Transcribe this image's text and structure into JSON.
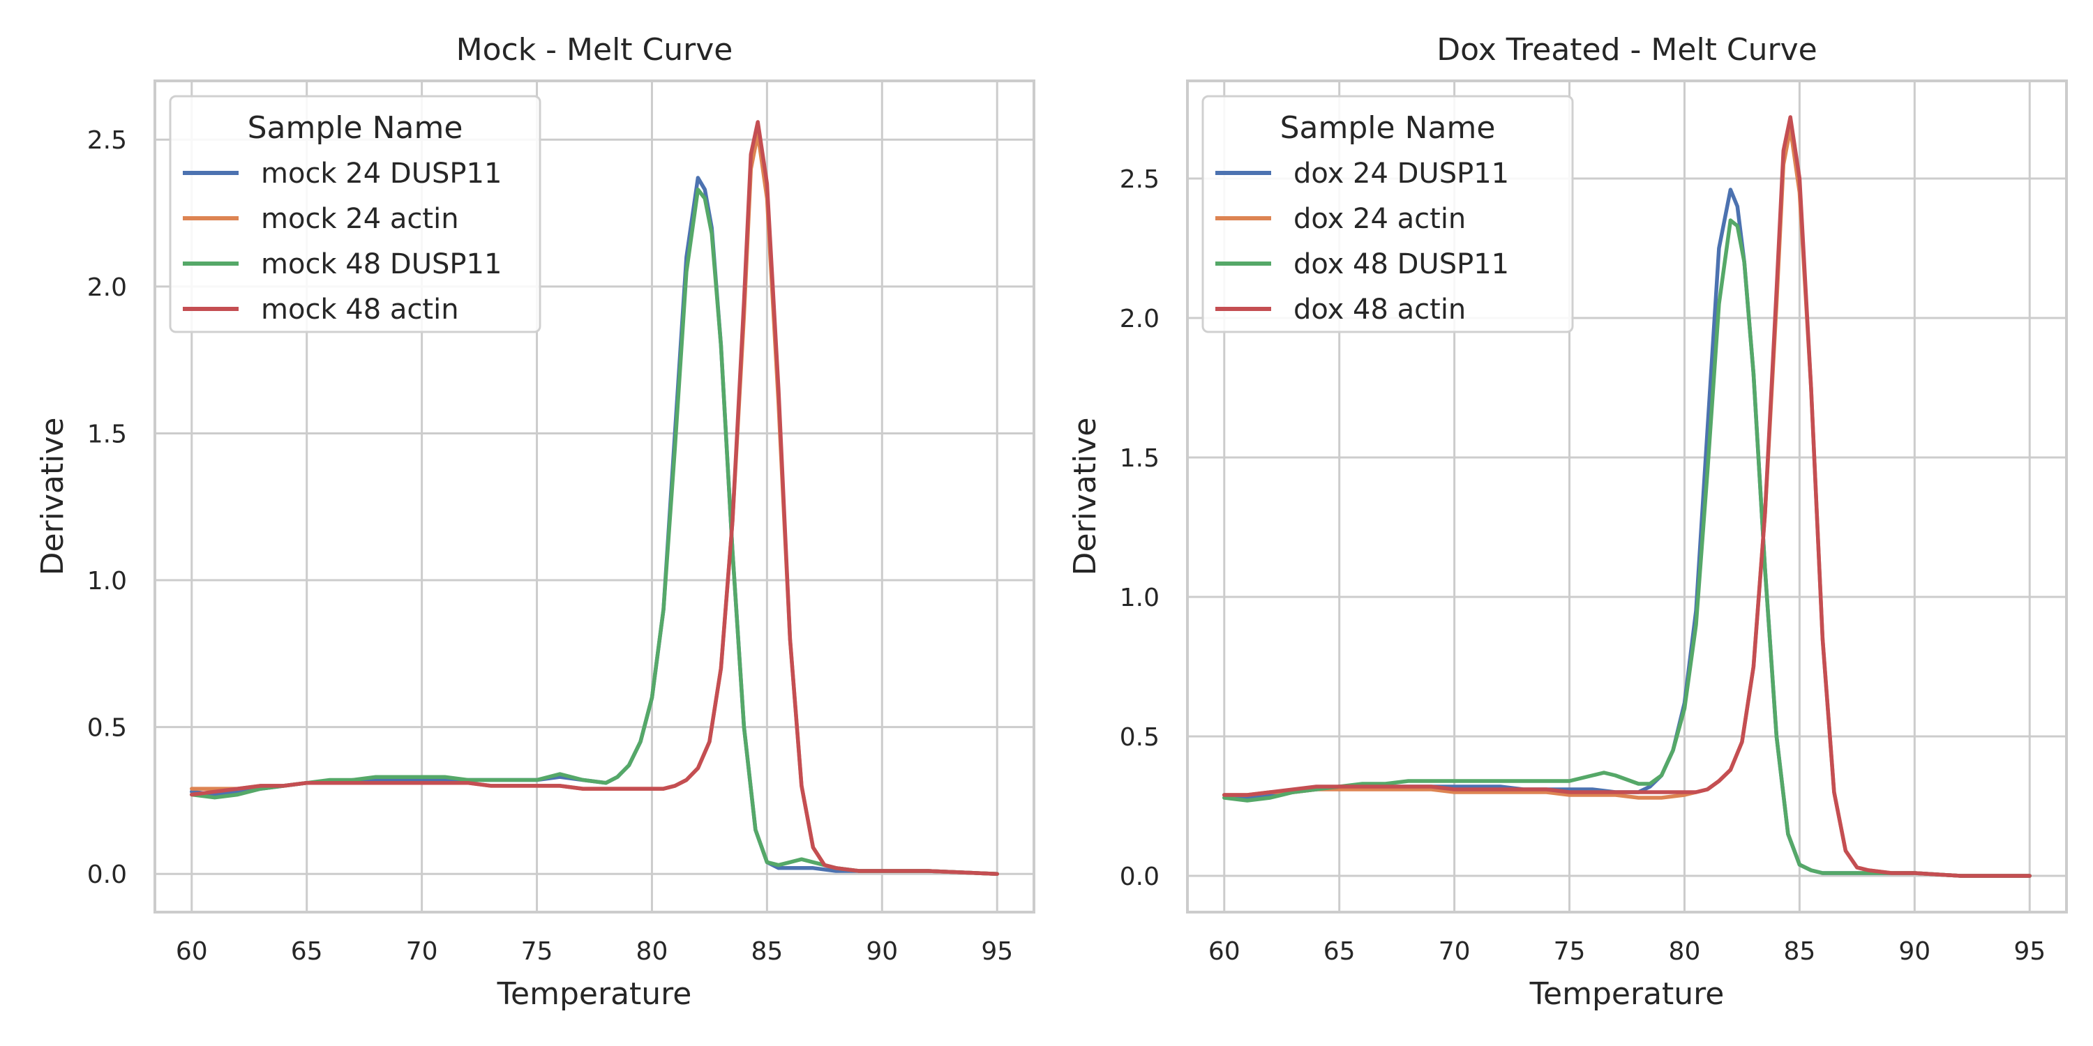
{
  "chart_data": [
    {
      "type": "line",
      "title": "Mock - Melt Curve",
      "xlabel": "Temperature",
      "ylabel": "Derivative",
      "xlim": [
        58.4,
        96.6
      ],
      "ylim": [
        -0.13,
        2.7
      ],
      "xticks": [
        "60",
        "65",
        "70",
        "75",
        "80",
        "85",
        "90",
        "95"
      ],
      "yticks": [
        "0.0",
        "0.5",
        "1.0",
        "1.5",
        "2.0",
        "2.5"
      ],
      "grid": true,
      "legend": {
        "title": "Sample Name",
        "position": "top-left"
      },
      "series": [
        {
          "name": "mock 24 DUSP11",
          "color": "#4c72b0",
          "x": [
            60,
            61,
            62,
            63,
            64,
            65,
            66,
            67,
            68,
            69,
            70,
            71,
            72,
            73,
            74,
            75,
            76,
            77,
            78,
            78.5,
            79,
            79.5,
            80,
            80.5,
            81,
            81.5,
            82,
            82.3,
            82.6,
            83,
            83.5,
            84,
            84.5,
            85,
            85.5,
            86,
            87,
            88,
            89,
            90,
            92,
            95
          ],
          "y": [
            0.28,
            0.27,
            0.28,
            0.29,
            0.3,
            0.31,
            0.31,
            0.32,
            0.32,
            0.32,
            0.32,
            0.32,
            0.32,
            0.32,
            0.32,
            0.32,
            0.33,
            0.32,
            0.31,
            0.33,
            0.37,
            0.45,
            0.6,
            0.9,
            1.5,
            2.1,
            2.37,
            2.33,
            2.2,
            1.8,
            1.1,
            0.5,
            0.15,
            0.04,
            0.02,
            0.02,
            0.02,
            0.01,
            0.01,
            0.01,
            0.01,
            0.0
          ]
        },
        {
          "name": "mock 24 actin",
          "color": "#dd8452",
          "x": [
            60,
            61,
            62,
            63,
            64,
            65,
            66,
            67,
            68,
            69,
            70,
            71,
            72,
            73,
            74,
            75,
            76,
            77,
            78,
            79,
            80,
            80.5,
            81,
            81.5,
            82,
            82.5,
            83,
            83.5,
            84,
            84.3,
            84.6,
            85,
            85.5,
            86,
            86.5,
            87,
            87.5,
            88,
            89,
            90,
            92,
            95
          ],
          "y": [
            0.29,
            0.29,
            0.29,
            0.3,
            0.3,
            0.31,
            0.31,
            0.31,
            0.31,
            0.31,
            0.31,
            0.31,
            0.31,
            0.3,
            0.3,
            0.3,
            0.3,
            0.29,
            0.29,
            0.29,
            0.29,
            0.29,
            0.3,
            0.32,
            0.36,
            0.45,
            0.7,
            1.2,
            1.9,
            2.4,
            2.52,
            2.3,
            1.6,
            0.8,
            0.3,
            0.09,
            0.03,
            0.02,
            0.01,
            0.01,
            0.01,
            0.0
          ]
        },
        {
          "name": "mock 48 DUSP11",
          "color": "#55a868",
          "x": [
            60,
            61,
            62,
            63,
            64,
            65,
            66,
            67,
            68,
            69,
            70,
            71,
            72,
            73,
            74,
            75,
            76,
            77,
            78,
            78.5,
            79,
            79.5,
            80,
            80.5,
            81,
            81.5,
            82,
            82.3,
            82.6,
            83,
            83.5,
            84,
            84.5,
            85,
            85.5,
            86,
            86.5,
            87,
            88,
            89,
            90,
            92,
            95
          ],
          "y": [
            0.27,
            0.26,
            0.27,
            0.29,
            0.3,
            0.31,
            0.32,
            0.32,
            0.33,
            0.33,
            0.33,
            0.33,
            0.32,
            0.32,
            0.32,
            0.32,
            0.34,
            0.32,
            0.31,
            0.33,
            0.37,
            0.45,
            0.6,
            0.9,
            1.45,
            2.05,
            2.33,
            2.3,
            2.18,
            1.8,
            1.1,
            0.5,
            0.15,
            0.04,
            0.03,
            0.04,
            0.05,
            0.04,
            0.02,
            0.01,
            0.01,
            0.01,
            0.0
          ]
        },
        {
          "name": "mock 48 actin",
          "color": "#c44e52",
          "x": [
            60,
            61,
            62,
            63,
            64,
            65,
            66,
            67,
            68,
            69,
            70,
            71,
            72,
            73,
            74,
            75,
            76,
            77,
            78,
            79,
            80,
            80.5,
            81,
            81.5,
            82,
            82.5,
            83,
            83.5,
            84,
            84.3,
            84.6,
            85,
            85.5,
            86,
            86.5,
            87,
            87.5,
            88,
            89,
            90,
            92,
            95
          ],
          "y": [
            0.27,
            0.28,
            0.29,
            0.3,
            0.3,
            0.31,
            0.31,
            0.31,
            0.31,
            0.31,
            0.31,
            0.31,
            0.31,
            0.3,
            0.3,
            0.3,
            0.3,
            0.29,
            0.29,
            0.29,
            0.29,
            0.29,
            0.3,
            0.32,
            0.36,
            0.45,
            0.7,
            1.2,
            1.95,
            2.45,
            2.56,
            2.35,
            1.65,
            0.8,
            0.3,
            0.09,
            0.03,
            0.02,
            0.01,
            0.01,
            0.01,
            0.0
          ]
        }
      ]
    },
    {
      "type": "line",
      "title": "Dox Treated - Melt Curve",
      "xlabel": "Temperature",
      "ylabel": "Derivative",
      "xlim": [
        58.4,
        96.6
      ],
      "ylim": [
        -0.13,
        2.85
      ],
      "xticks": [
        "60",
        "65",
        "70",
        "75",
        "80",
        "85",
        "90",
        "95"
      ],
      "yticks": [
        "0.0",
        "0.5",
        "1.0",
        "1.5",
        "2.0",
        "2.5"
      ],
      "grid": true,
      "legend": {
        "title": "Sample Name",
        "position": "top-left"
      },
      "series": [
        {
          "name": "dox 24 DUSP11",
          "color": "#4c72b0",
          "x": [
            60,
            61,
            62,
            63,
            64,
            65,
            66,
            67,
            68,
            69,
            70,
            71,
            72,
            73,
            74,
            75,
            76,
            77,
            78,
            78.5,
            79,
            79.5,
            80,
            80.5,
            81,
            81.5,
            82,
            82.3,
            82.6,
            83,
            83.5,
            84,
            84.5,
            85,
            85.5,
            86,
            87,
            88,
            89,
            90,
            92,
            95
          ],
          "y": [
            0.29,
            0.28,
            0.29,
            0.3,
            0.31,
            0.32,
            0.32,
            0.32,
            0.32,
            0.32,
            0.32,
            0.32,
            0.32,
            0.31,
            0.31,
            0.31,
            0.31,
            0.3,
            0.3,
            0.32,
            0.36,
            0.45,
            0.62,
            0.95,
            1.6,
            2.25,
            2.46,
            2.4,
            2.2,
            1.8,
            1.1,
            0.5,
            0.15,
            0.04,
            0.02,
            0.01,
            0.01,
            0.01,
            0.01,
            0.01,
            0.0,
            0.0
          ]
        },
        {
          "name": "dox 24 actin",
          "color": "#dd8452",
          "x": [
            60,
            61,
            62,
            63,
            64,
            65,
            66,
            67,
            68,
            69,
            70,
            71,
            72,
            73,
            74,
            75,
            76,
            77,
            78,
            79,
            80,
            80.5,
            81,
            81.5,
            82,
            82.5,
            83,
            83.5,
            84,
            84.3,
            84.6,
            85,
            85.5,
            86,
            86.5,
            87,
            87.5,
            88,
            89,
            90,
            92,
            95
          ],
          "y": [
            0.29,
            0.29,
            0.3,
            0.3,
            0.31,
            0.31,
            0.31,
            0.31,
            0.31,
            0.31,
            0.3,
            0.3,
            0.3,
            0.3,
            0.3,
            0.29,
            0.29,
            0.29,
            0.28,
            0.28,
            0.29,
            0.3,
            0.31,
            0.34,
            0.38,
            0.48,
            0.75,
            1.3,
            2.05,
            2.55,
            2.68,
            2.45,
            1.75,
            0.85,
            0.3,
            0.09,
            0.03,
            0.02,
            0.01,
            0.01,
            0.0,
            0.0
          ]
        },
        {
          "name": "dox 48 DUSP11",
          "color": "#55a868",
          "x": [
            60,
            61,
            62,
            63,
            64,
            65,
            66,
            67,
            68,
            69,
            70,
            71,
            72,
            73,
            74,
            75,
            76,
            76.5,
            77,
            78,
            78.5,
            79,
            79.5,
            80,
            80.5,
            81,
            81.5,
            82,
            82.3,
            82.6,
            83,
            83.5,
            84,
            84.5,
            85,
            85.5,
            86,
            87,
            88,
            89,
            90,
            92,
            95
          ],
          "y": [
            0.28,
            0.27,
            0.28,
            0.3,
            0.31,
            0.32,
            0.33,
            0.33,
            0.34,
            0.34,
            0.34,
            0.34,
            0.34,
            0.34,
            0.34,
            0.34,
            0.36,
            0.37,
            0.36,
            0.33,
            0.33,
            0.36,
            0.45,
            0.6,
            0.9,
            1.45,
            2.05,
            2.35,
            2.33,
            2.2,
            1.8,
            1.1,
            0.5,
            0.15,
            0.04,
            0.02,
            0.01,
            0.01,
            0.01,
            0.01,
            0.01,
            0.0,
            0.0
          ]
        },
        {
          "name": "dox 48 actin",
          "color": "#c44e52",
          "x": [
            60,
            61,
            62,
            63,
            64,
            65,
            66,
            67,
            68,
            69,
            70,
            71,
            72,
            73,
            74,
            75,
            76,
            77,
            78,
            79,
            80,
            80.5,
            81,
            81.5,
            82,
            82.5,
            83,
            83.5,
            84,
            84.3,
            84.6,
            85,
            85.5,
            86,
            86.5,
            87,
            87.5,
            88,
            89,
            90,
            92,
            95
          ],
          "y": [
            0.29,
            0.29,
            0.3,
            0.31,
            0.32,
            0.32,
            0.32,
            0.32,
            0.32,
            0.32,
            0.31,
            0.31,
            0.31,
            0.31,
            0.31,
            0.3,
            0.3,
            0.3,
            0.3,
            0.3,
            0.3,
            0.3,
            0.31,
            0.34,
            0.38,
            0.48,
            0.75,
            1.3,
            2.1,
            2.6,
            2.72,
            2.5,
            1.75,
            0.85,
            0.3,
            0.09,
            0.03,
            0.02,
            0.01,
            0.01,
            0.0,
            0.0
          ]
        }
      ]
    }
  ]
}
